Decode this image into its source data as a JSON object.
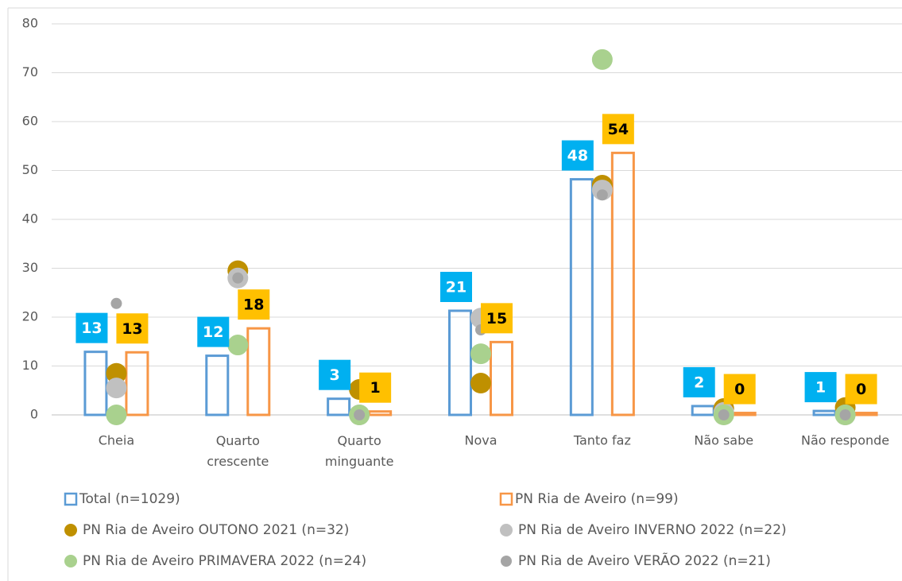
{
  "chart_data": {
    "type": "bar",
    "categories": [
      "Cheia",
      "Quarto crescente",
      "Quarto minguante",
      "Nova",
      "Tanto faz",
      "Não sabe",
      "Não responde"
    ],
    "ylim": [
      0,
      80
    ],
    "yticks": [
      0,
      10,
      20,
      30,
      40,
      50,
      60,
      70,
      80
    ],
    "grid": true,
    "legend": "bottom",
    "series": [
      {
        "name": "Total (n=1029)",
        "kind": "bar",
        "color": "#5b9bd5",
        "label_color": "#00b0f0",
        "values": [
          12.9,
          12.1,
          3.3,
          21.3,
          48.2,
          1.8,
          0.8
        ],
        "value_labels": [
          "13",
          "12",
          "3",
          "21",
          "48",
          "2",
          "1"
        ]
      },
      {
        "name": "PN Ria de Aveiro (n=99)",
        "kind": "bar",
        "color": "#f79646",
        "label_color": "#ffc000",
        "values": [
          12.8,
          17.7,
          0.7,
          14.9,
          53.6,
          0.4,
          0.4
        ],
        "value_labels": [
          "13",
          "18",
          "1",
          "15",
          "54",
          "0",
          "0"
        ]
      },
      {
        "name": "PN Ria de Aveiro OUTONO 2021 (n=32)",
        "kind": "dot",
        "color": "#bf9000",
        "values": [
          8.5,
          29.5,
          5.2,
          6.5,
          47,
          1.3,
          1.5
        ]
      },
      {
        "name": "PN Ria de Aveiro INVERNO 2022 (n=22)",
        "kind": "dot",
        "color": "#c0c0c0",
        "values": [
          5.5,
          28,
          0,
          19.8,
          46,
          0.5,
          0
        ]
      },
      {
        "name": "PN Ria de Aveiro PRIMAVERA 2022 (n=24)",
        "kind": "dot",
        "color": "#a9d18e",
        "values": [
          0,
          14.3,
          0,
          12.5,
          72.7,
          0,
          0
        ]
      },
      {
        "name": "PN Ria de Aveiro VERÃO 2022 (n=21)",
        "kind": "dot-small",
        "color": "#a5a5a5",
        "values": [
          22.8,
          28,
          0,
          17.4,
          45,
          0,
          0
        ]
      }
    ]
  }
}
